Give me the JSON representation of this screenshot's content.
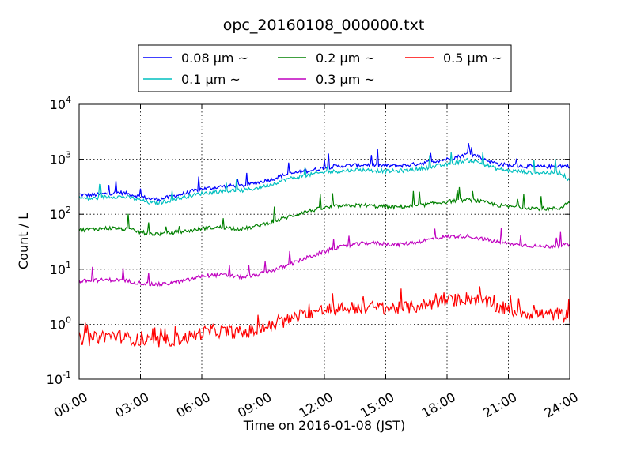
{
  "chart_data": {
    "type": "line",
    "title": "opc_20160108_000000.txt",
    "xlabel": "Time on 2016-01-08 (JST)",
    "ylabel": "Count / L",
    "xlim": [
      "00:00",
      "24:00"
    ],
    "x_ticks": [
      "00:00",
      "03:00",
      "06:00",
      "09:00",
      "12:00",
      "15:00",
      "18:00",
      "21:00",
      "24:00"
    ],
    "y_scale": "log",
    "ylim": [
      0.1,
      10000
    ],
    "y_ticks": [
      {
        "base": "10",
        "exp": "-1",
        "value": 0.1
      },
      {
        "base": "10",
        "exp": "0",
        "value": 1
      },
      {
        "base": "10",
        "exp": "1",
        "value": 10
      },
      {
        "base": "10",
        "exp": "2",
        "value": 100
      },
      {
        "base": "10",
        "exp": "3",
        "value": 1000
      },
      {
        "base": "10",
        "exp": "4",
        "value": 10000
      }
    ],
    "grid": true,
    "legend_position": "top-center",
    "x_hours": [
      0,
      0.5,
      1,
      1.5,
      2,
      2.5,
      3,
      3.5,
      4,
      4.5,
      5,
      5.5,
      6,
      6.5,
      7,
      7.5,
      8,
      8.5,
      9,
      9.5,
      10,
      10.5,
      11,
      11.5,
      12,
      12.5,
      13,
      13.5,
      14,
      14.5,
      15,
      15.5,
      16,
      16.5,
      17,
      17.5,
      18,
      18.5,
      19,
      19.5,
      20,
      20.5,
      21,
      21.5,
      22,
      22.5,
      23,
      23.5,
      24
    ],
    "series": [
      {
        "name": "0.08 μm ~",
        "color": "#0000ff",
        "values": [
          230,
          220,
          230,
          240,
          250,
          230,
          210,
          190,
          190,
          210,
          230,
          260,
          290,
          300,
          320,
          330,
          330,
          360,
          400,
          440,
          520,
          560,
          600,
          640,
          700,
          740,
          760,
          780,
          800,
          780,
          760,
          760,
          780,
          820,
          880,
          940,
          1000,
          1100,
          1250,
          1150,
          950,
          820,
          780,
          760,
          740,
          730,
          740,
          760,
          750
        ]
      },
      {
        "name": "0.1 μm ~",
        "color": "#00bfbf",
        "values": [
          200,
          190,
          200,
          210,
          210,
          200,
          180,
          160,
          165,
          180,
          200,
          220,
          240,
          250,
          260,
          270,
          270,
          290,
          320,
          360,
          420,
          460,
          500,
          540,
          580,
          600,
          620,
          640,
          640,
          620,
          610,
          610,
          630,
          660,
          700,
          750,
          800,
          880,
          960,
          900,
          760,
          660,
          620,
          600,
          580,
          570,
          570,
          580,
          420
        ]
      },
      {
        "name": "0.2 μm ~",
        "color": "#008000",
        "values": [
          52,
          53,
          55,
          56,
          55,
          52,
          47,
          44,
          44,
          46,
          48,
          51,
          55,
          57,
          58,
          56,
          54,
          58,
          66,
          74,
          84,
          96,
          110,
          120,
          130,
          138,
          140,
          145,
          145,
          140,
          138,
          135,
          138,
          142,
          150,
          160,
          170,
          178,
          182,
          175,
          160,
          145,
          138,
          136,
          132,
          128,
          125,
          128,
          170
        ]
      },
      {
        "name": "0.3 μm ~",
        "color": "#bf00bf",
        "values": [
          6,
          6.2,
          6.3,
          6.4,
          6.3,
          6.0,
          5.6,
          5.3,
          5.3,
          5.6,
          6.0,
          6.6,
          7.5,
          7.8,
          7.8,
          7.5,
          7.2,
          7.5,
          8.5,
          9.6,
          11,
          13,
          15.5,
          18,
          21,
          24,
          26,
          28,
          30,
          30,
          29,
          28,
          29,
          31,
          34,
          37,
          39,
          40,
          40,
          37,
          34,
          31,
          29,
          28,
          27,
          26,
          26,
          27,
          28
        ]
      },
      {
        "name": "0.5 μm ~",
        "color": "#ff0000",
        "values": [
          0.55,
          0.52,
          0.6,
          0.62,
          0.6,
          0.55,
          0.5,
          0.48,
          0.48,
          0.52,
          0.55,
          0.6,
          0.7,
          0.75,
          0.74,
          0.72,
          0.7,
          0.75,
          0.85,
          0.95,
          1.1,
          1.3,
          1.5,
          1.7,
          1.8,
          1.9,
          1.95,
          2.0,
          2.05,
          2.0,
          1.95,
          1.95,
          2.0,
          2.1,
          2.3,
          2.5,
          2.6,
          2.8,
          3.0,
          2.8,
          2.4,
          2.0,
          1.8,
          1.7,
          1.6,
          1.55,
          1.5,
          1.55,
          1.2
        ]
      }
    ]
  }
}
